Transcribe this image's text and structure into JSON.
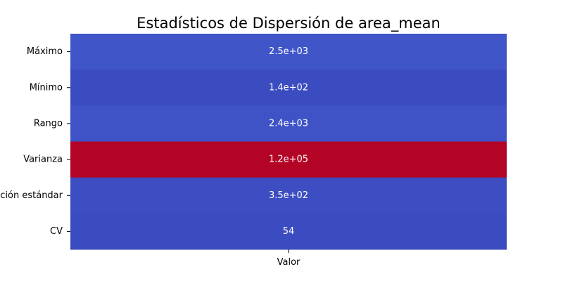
{
  "chart_data": {
    "type": "heatmap",
    "title": "Estadísticos de Dispersión de area_mean",
    "xlabel": "",
    "ylabel": "",
    "x_categories": [
      "Valor"
    ],
    "y_categories": [
      "Máximo",
      "Mínimo",
      "Rango",
      "Varianza",
      "Desviación estándar",
      "CV"
    ],
    "values": [
      2501,
      143.5,
      2357.5,
      123843.55,
      351.91,
      53.8
    ],
    "cell_labels": [
      "2.5e+03",
      "1.4e+02",
      "2.4e+03",
      "1.2e+05",
      "3.5e+02",
      "54"
    ],
    "colormap": "coolwarm",
    "colors": [
      "#4055c8",
      "#3b4cc0",
      "#3f53c6",
      "#b40426",
      "#3c4ec2",
      "#3b4cc0"
    ],
    "colorbar": false,
    "grid": false
  }
}
